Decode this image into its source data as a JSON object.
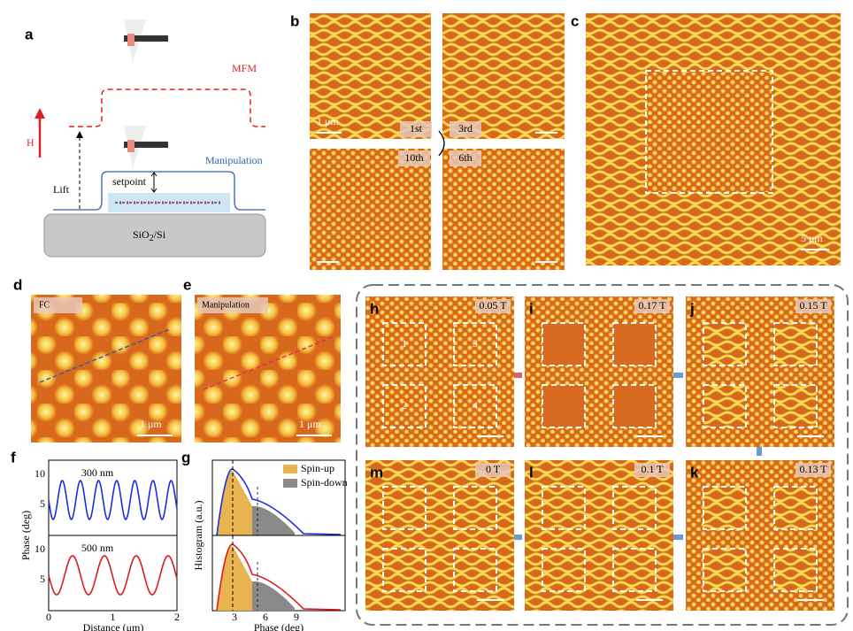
{
  "panel_a": {
    "label": "a",
    "mfm": "MFM",
    "field": "H",
    "lift": "Lift",
    "setpoint": "setpoint",
    "manipulation": "Manipulation",
    "substrate": "SiO",
    "substrate_sub": "2",
    "substrate_rest": "/Si"
  },
  "panel_b": {
    "label": "b",
    "scale": "1 μm",
    "steps": [
      "1st",
      "3rd",
      "10th",
      "6th"
    ]
  },
  "panel_c": {
    "label": "c",
    "scale": "5 μm"
  },
  "panel_d": {
    "label": "d",
    "tag": "FC",
    "scale": "1 μm"
  },
  "panel_e": {
    "label": "e",
    "tag": "Manipulation",
    "scale": "1 μm"
  },
  "panel_f": {
    "label": "f",
    "top_annotation": "300 nm",
    "bottom_annotation": "500 nm",
    "y_label": "Phase (deg)",
    "x_label": "Distance (μm)",
    "yticks": [
      "5",
      "10"
    ],
    "xticks": [
      "0",
      "1",
      "2"
    ]
  },
  "panel_g": {
    "label": "g",
    "legend": [
      "Spin-up",
      "Spin-down"
    ],
    "y_label": "Histogram (a.u.)",
    "x_label": "Phase (deg)",
    "xticks": [
      "3",
      "6",
      "9"
    ]
  },
  "panels_h_m": [
    {
      "label": "h",
      "field": "0.05 T",
      "regions": [
        "1",
        "2",
        "3",
        "4"
      ]
    },
    {
      "label": "i",
      "field": "0.17 T"
    },
    {
      "label": "j",
      "field": "0.15 T"
    },
    {
      "label": "m",
      "field": "0 T"
    },
    {
      "label": "l",
      "field": "0.1 T"
    },
    {
      "label": "k",
      "field": "0.13 T"
    }
  ]
}
